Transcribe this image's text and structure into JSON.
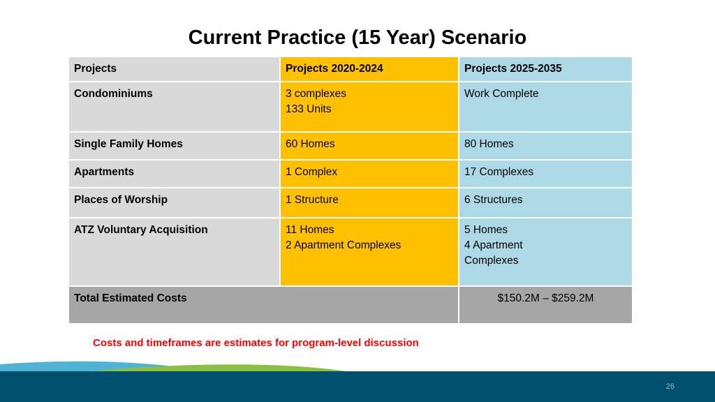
{
  "slide": {
    "title": "Current Practice (15 Year) Scenario",
    "disclaimer": "Costs and timeframes are estimates for program-level discussion",
    "page_number": "26"
  },
  "table": {
    "headers": [
      "Projects",
      "Projects 2020-2024",
      "Projects 2025-2035"
    ],
    "rows": [
      {
        "label": "Condominiums",
        "p2020": [
          "3 complexes",
          "133 Units"
        ],
        "p2025": [
          "Work Complete"
        ]
      },
      {
        "label": "Single Family Homes",
        "p2020": [
          "60 Homes"
        ],
        "p2025": [
          "80 Homes"
        ]
      },
      {
        "label": "Apartments",
        "p2020": [
          "1 Complex"
        ],
        "p2025": [
          "17 Complexes"
        ]
      },
      {
        "label": "Places of Worship",
        "p2020": [
          "1 Structure"
        ],
        "p2025": [
          "6 Structures"
        ]
      },
      {
        "label": "ATZ Voluntary Acquisition",
        "p2020": [
          "11 Homes",
          "2 Apartment Complexes"
        ],
        "p2025": [
          "5 Homes",
          "4 Apartment",
          "Complexes"
        ]
      }
    ],
    "total": {
      "label": "Total Estimated Costs",
      "value": "$150.2M  – $259.2M"
    }
  },
  "colors": {
    "header_gray": "#d9d9d9",
    "column_2020_gold": "#ffc000",
    "column_2025_blue": "#add8e6",
    "total_row_gray": "#a6a6a6",
    "disclaimer_red": "#ff0000",
    "footer_navy": "#014f6f",
    "footer_green": "#8cbf3f",
    "footer_light_blue": "#4fb3d6"
  }
}
